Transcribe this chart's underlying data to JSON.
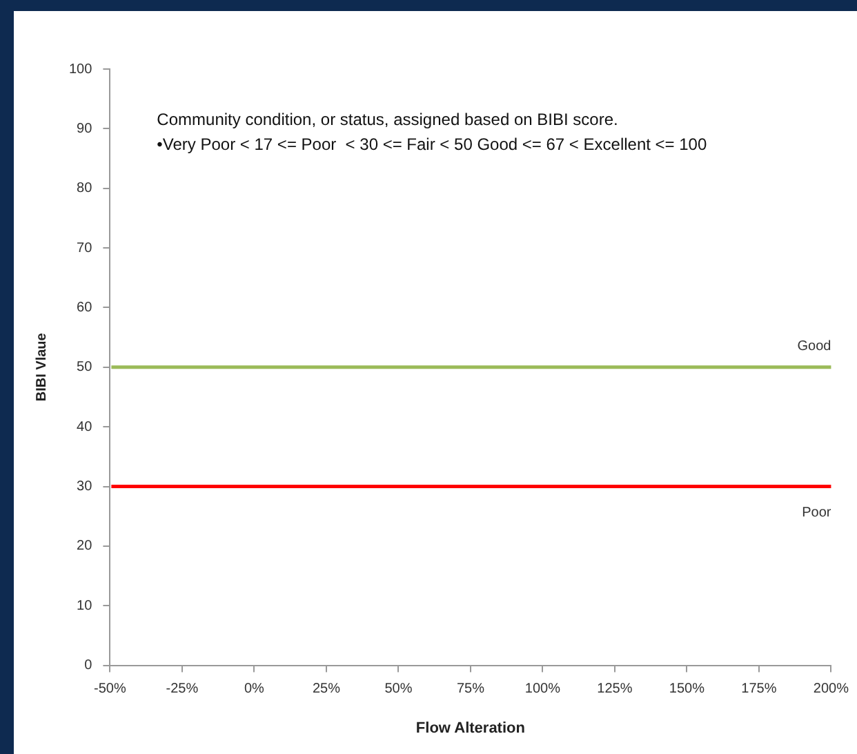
{
  "chart_data": {
    "type": "line",
    "xlabel": "Flow Alteration",
    "ylabel": "BIBI Vlaue",
    "annotations": [
      "Community condition, or status, assigned based on BIBI score.",
      "•Very Poor < 17 <= Poor  < 30 <= Fair < 50 Good <= 67 < Excellent <= 100"
    ],
    "xlim": [
      -50,
      200
    ],
    "xticks": [
      {
        "value": -50,
        "label": "-50%"
      },
      {
        "value": -25,
        "label": "-25%"
      },
      {
        "value": 0,
        "label": "0%"
      },
      {
        "value": 25,
        "label": "25%"
      },
      {
        "value": 50,
        "label": "50%"
      },
      {
        "value": 75,
        "label": "75%"
      },
      {
        "value": 100,
        "label": "100%"
      },
      {
        "value": 125,
        "label": "125%"
      },
      {
        "value": 150,
        "label": "150%"
      },
      {
        "value": 175,
        "label": "175%"
      },
      {
        "value": 200,
        "label": "200%"
      }
    ],
    "ylim": [
      0,
      100
    ],
    "yticks": [
      0,
      10,
      20,
      30,
      40,
      50,
      60,
      70,
      80,
      90,
      100
    ],
    "ref_lines": [
      {
        "axis": "y",
        "value": 50,
        "label": "Good",
        "color": "#9bbb59"
      },
      {
        "axis": "y",
        "value": 30,
        "label": "Poor",
        "color": "#ff0000"
      }
    ],
    "grid": false,
    "legend": false
  }
}
